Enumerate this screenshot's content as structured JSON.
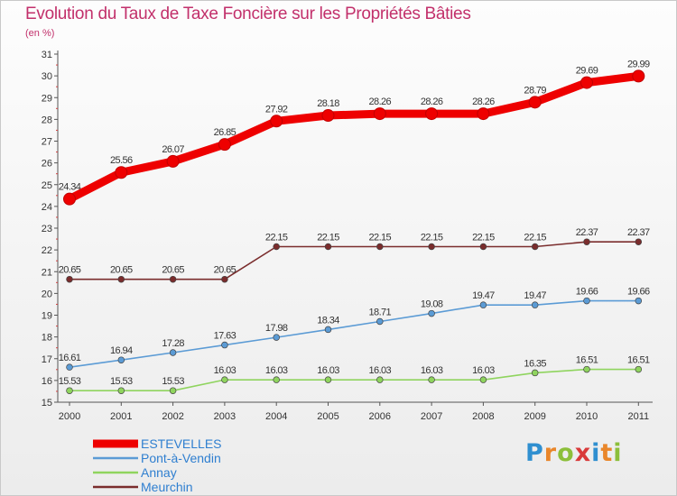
{
  "header": {
    "title": "Evolution du Taux de Taxe Foncière sur les Propriétés Bâties",
    "subtitle": "(en %)"
  },
  "brand": {
    "letters": [
      "P",
      "r",
      "o",
      "x",
      "i",
      "t",
      "i"
    ],
    "colors": [
      "#2f8fd0",
      "#e9862a",
      "#8cbf3a",
      "#d93a3a",
      "#2f8fd0",
      "#e9862a",
      "#8cbf3a"
    ]
  },
  "chart_data": {
    "type": "line",
    "title": "Evolution du Taux de Taxe Foncière sur les Propriétés Bâties",
    "ylabel": "(en %)",
    "xlabel": "",
    "ylim": [
      15,
      31
    ],
    "yticks": [
      15,
      16,
      17,
      18,
      19,
      20,
      21,
      22,
      23,
      24,
      25,
      26,
      27,
      28,
      29,
      30,
      31
    ],
    "categories": [
      "2000",
      "2001",
      "2002",
      "2003",
      "2004",
      "2005",
      "2006",
      "2007",
      "2008",
      "2009",
      "2010",
      "2011"
    ],
    "legend_position": "bottom-left",
    "grid": false,
    "series": [
      {
        "name": "ESTEVELLES",
        "color": "#ee0000",
        "values": [
          24.34,
          25.56,
          26.07,
          26.85,
          27.92,
          28.18,
          28.26,
          28.26,
          28.26,
          28.79,
          29.69,
          29.99
        ],
        "labels": [
          "24.34",
          "25.56",
          "26.07",
          "26.85",
          "27.92",
          "28.18",
          "28.26",
          "28.26",
          "28.26",
          "28.79",
          "29.69",
          "29.99"
        ]
      },
      {
        "name": "Pont-à-Vendin",
        "color": "#5b9bd5",
        "values": [
          16.61,
          16.94,
          17.28,
          17.63,
          17.98,
          18.34,
          18.71,
          19.08,
          19.47,
          19.47,
          19.66,
          19.66
        ],
        "labels": [
          "16.61",
          "16.94",
          "17.28",
          "17.63",
          "17.98",
          "18.34",
          "18.71",
          "19.08",
          "19.47",
          "19.47",
          "19.66",
          "19.66"
        ]
      },
      {
        "name": "Annay",
        "color": "#8fd45e",
        "values": [
          15.53,
          15.53,
          15.53,
          16.03,
          16.03,
          16.03,
          16.03,
          16.03,
          16.03,
          16.35,
          16.51,
          16.51
        ],
        "labels": [
          "15.53",
          "15.53",
          "15.53",
          "16.03",
          "16.03",
          "16.03",
          "16.03",
          "16.03",
          "16.03",
          "16.35",
          "16.51",
          "16.51"
        ]
      },
      {
        "name": "Meurchin",
        "color": "#7a2c2c",
        "values": [
          20.65,
          20.65,
          20.65,
          20.65,
          22.15,
          22.15,
          22.15,
          22.15,
          22.15,
          22.15,
          22.37,
          22.37
        ],
        "labels": [
          "20.65",
          "20.65",
          "20.65",
          "20.65",
          "22.15",
          "22.15",
          "22.15",
          "22.15",
          "22.15",
          "22.15",
          "22.37",
          "22.37"
        ]
      }
    ]
  }
}
